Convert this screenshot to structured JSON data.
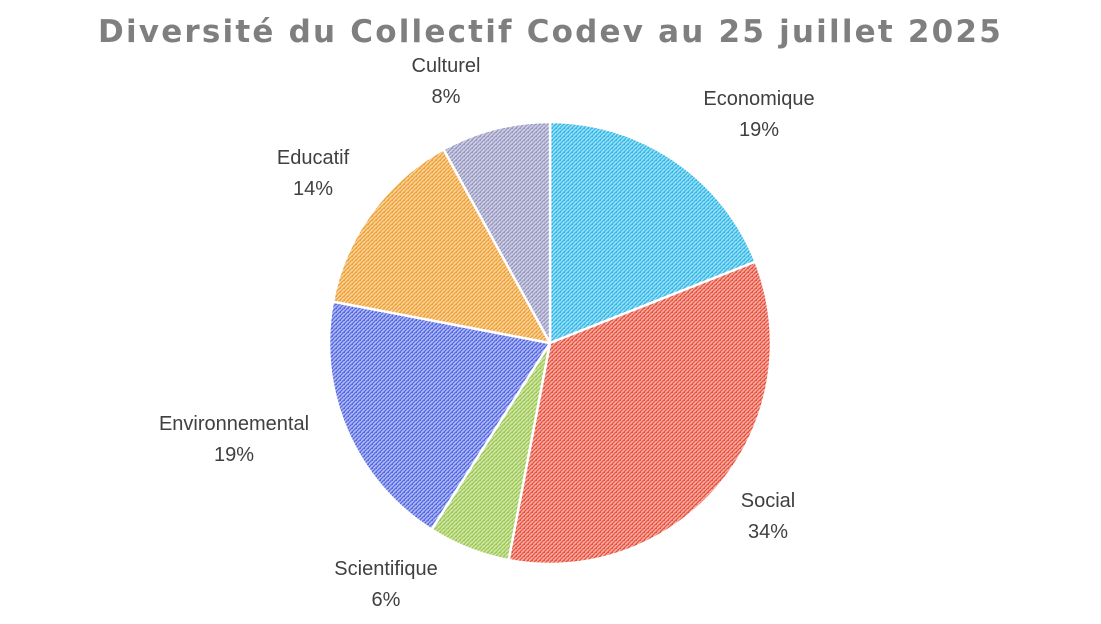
{
  "chart_data": {
    "type": "pie",
    "title": "Diversité du Collectif Codev au 25 juillet 2025",
    "slices": [
      {
        "label": "Economique",
        "value": 19,
        "pct_label": "19%",
        "color": "#2fb8e8"
      },
      {
        "label": "Social",
        "value": 34,
        "pct_label": "34%",
        "color": "#e8503c"
      },
      {
        "label": "Scientifique",
        "value": 6,
        "pct_label": "6%",
        "color": "#9cc84e"
      },
      {
        "label": "Environnemental",
        "value": 19,
        "pct_label": "19%",
        "color": "#5468e4"
      },
      {
        "label": "Educatif",
        "value": 14,
        "pct_label": "14%",
        "color": "#f0a030"
      },
      {
        "label": "Culturel",
        "value": 8,
        "pct_label": "8%",
        "color": "#9898c4"
      }
    ],
    "start_angle": "12 o'clock",
    "direction": "clockwise",
    "legend": "none",
    "fill_pattern": "dotted-hatch"
  }
}
